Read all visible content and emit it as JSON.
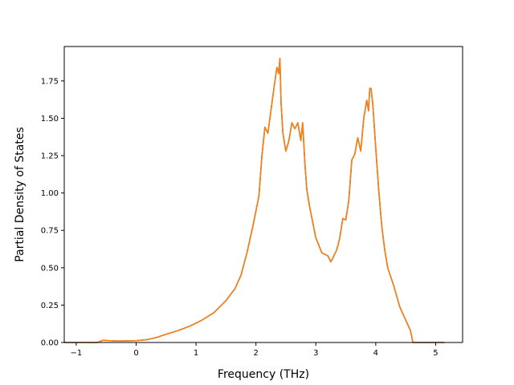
{
  "chart_data": {
    "type": "line",
    "title": "",
    "xlabel": "Frequency (THz)",
    "ylabel": "Partial Density of States",
    "xlim": [
      -1.2,
      5.45
    ],
    "ylim": [
      0.0,
      1.98
    ],
    "x_ticks": [
      -1,
      0,
      1,
      2,
      3,
      4,
      5
    ],
    "x_tick_labels": [
      "−1",
      "0",
      "1",
      "2",
      "3",
      "4",
      "5"
    ],
    "y_ticks": [
      0.0,
      0.25,
      0.5,
      0.75,
      1.0,
      1.25,
      1.5,
      1.75
    ],
    "y_tick_labels": [
      "0.00",
      "0.25",
      "0.50",
      "0.75",
      "1.00",
      "1.25",
      "1.50",
      "1.75"
    ],
    "grid": false,
    "legend": "none",
    "series": [
      {
        "color": "#1f77b4",
        "x": [
          -1.2,
          -0.65,
          -0.55,
          -0.45,
          -0.3,
          0.0,
          0.2,
          0.35,
          0.5,
          0.7,
          0.9,
          1.1,
          1.3,
          1.5,
          1.65,
          1.75,
          1.85,
          1.95,
          2.05,
          2.1,
          2.15,
          2.2,
          2.25,
          2.3,
          2.35,
          2.38,
          2.4,
          2.42,
          2.45,
          2.5,
          2.55,
          2.6,
          2.65,
          2.7,
          2.75,
          2.78,
          2.82,
          2.85,
          2.9,
          3.0,
          3.1,
          3.2,
          3.25,
          3.28,
          3.3,
          3.35,
          3.4,
          3.45,
          3.5,
          3.55,
          3.6,
          3.65,
          3.7,
          3.75,
          3.8,
          3.85,
          3.88,
          3.9,
          3.92,
          3.95,
          4.0,
          4.05,
          4.1,
          4.15,
          4.2,
          4.3,
          4.4,
          4.5,
          4.58,
          4.62,
          4.7,
          5.15
        ],
        "y": [
          0.0,
          0.0,
          0.015,
          0.012,
          0.01,
          0.012,
          0.02,
          0.035,
          0.055,
          0.08,
          0.11,
          0.15,
          0.2,
          0.28,
          0.36,
          0.45,
          0.6,
          0.78,
          0.98,
          1.25,
          1.44,
          1.4,
          1.55,
          1.7,
          1.84,
          1.8,
          1.9,
          1.6,
          1.4,
          1.28,
          1.35,
          1.47,
          1.43,
          1.47,
          1.35,
          1.47,
          1.18,
          1.02,
          0.9,
          0.7,
          0.6,
          0.58,
          0.54,
          0.56,
          0.58,
          0.62,
          0.7,
          0.83,
          0.82,
          0.95,
          1.22,
          1.26,
          1.37,
          1.28,
          1.5,
          1.62,
          1.55,
          1.7,
          1.7,
          1.6,
          1.3,
          1.02,
          0.78,
          0.62,
          0.5,
          0.38,
          0.24,
          0.15,
          0.08,
          0.0,
          0.0,
          0.0
        ]
      },
      {
        "color": "#ff7f0e",
        "x": [
          -1.2,
          -0.65,
          -0.55,
          -0.45,
          -0.3,
          0.0,
          0.2,
          0.35,
          0.5,
          0.7,
          0.9,
          1.1,
          1.3,
          1.5,
          1.65,
          1.75,
          1.85,
          1.95,
          2.05,
          2.1,
          2.15,
          2.2,
          2.25,
          2.3,
          2.35,
          2.38,
          2.4,
          2.42,
          2.45,
          2.5,
          2.55,
          2.6,
          2.65,
          2.7,
          2.75,
          2.78,
          2.82,
          2.85,
          2.9,
          3.0,
          3.1,
          3.2,
          3.25,
          3.28,
          3.3,
          3.35,
          3.4,
          3.45,
          3.5,
          3.55,
          3.6,
          3.65,
          3.7,
          3.75,
          3.8,
          3.85,
          3.88,
          3.9,
          3.92,
          3.95,
          4.0,
          4.05,
          4.1,
          4.15,
          4.2,
          4.3,
          4.4,
          4.5,
          4.58,
          4.62,
          4.7,
          5.15
        ],
        "y": [
          0.0,
          0.0,
          0.015,
          0.012,
          0.01,
          0.012,
          0.02,
          0.035,
          0.055,
          0.08,
          0.11,
          0.15,
          0.2,
          0.28,
          0.36,
          0.45,
          0.6,
          0.78,
          0.98,
          1.25,
          1.44,
          1.4,
          1.55,
          1.7,
          1.84,
          1.8,
          1.9,
          1.6,
          1.4,
          1.28,
          1.35,
          1.47,
          1.43,
          1.47,
          1.35,
          1.47,
          1.18,
          1.02,
          0.9,
          0.7,
          0.6,
          0.58,
          0.54,
          0.56,
          0.58,
          0.62,
          0.7,
          0.83,
          0.82,
          0.95,
          1.22,
          1.26,
          1.37,
          1.28,
          1.5,
          1.62,
          1.55,
          1.7,
          1.7,
          1.6,
          1.3,
          1.02,
          0.78,
          0.62,
          0.5,
          0.38,
          0.24,
          0.15,
          0.08,
          0.0,
          0.0,
          0.0
        ]
      }
    ]
  }
}
